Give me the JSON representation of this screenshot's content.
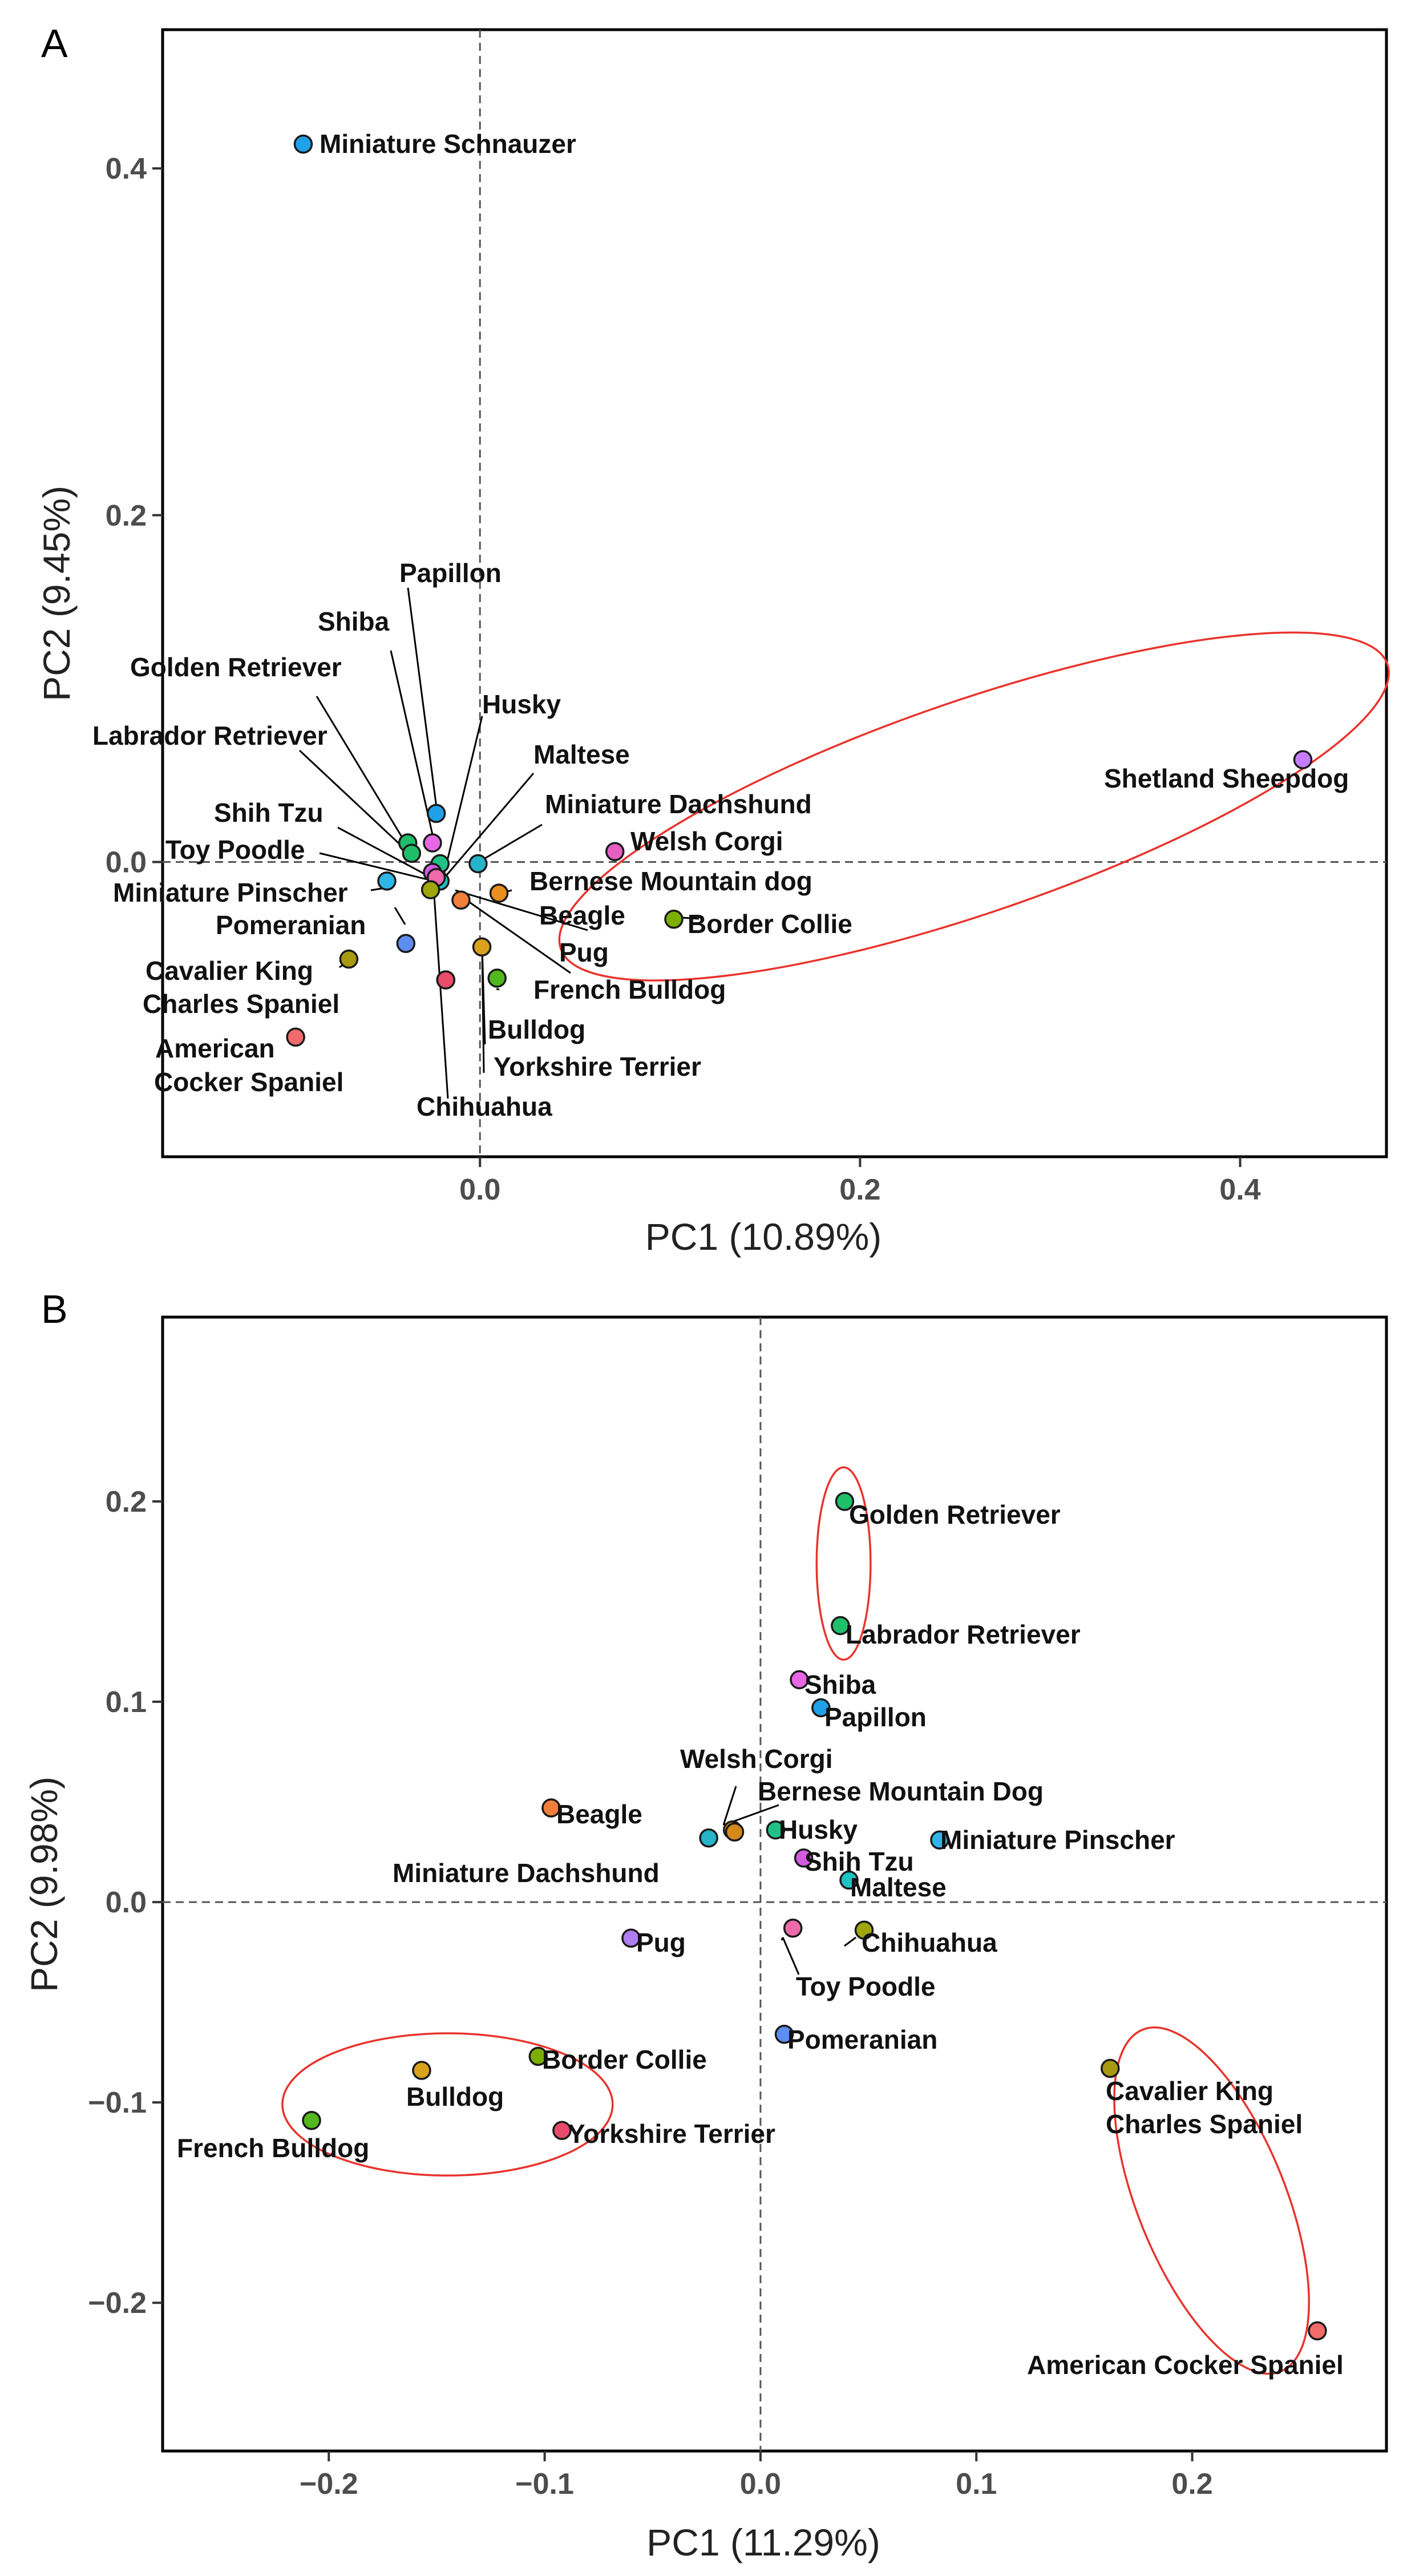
{
  "chart_data": [
    {
      "type": "scatter",
      "panel": "A",
      "xlabel": "PC1 (10.89%)",
      "ylabel": "PC2 (9.45%)",
      "xlim": [
        -0.167,
        0.477
      ],
      "ylim": [
        -0.17,
        0.48
      ],
      "xticks": [
        {
          "v": 0.0,
          "label": "0.0"
        },
        {
          "v": 0.2,
          "label": "0.2"
        },
        {
          "v": 0.4,
          "label": "0.4"
        }
      ],
      "yticks": [
        {
          "v": 0.0,
          "label": "0.0"
        },
        {
          "v": 0.2,
          "label": "0.2"
        },
        {
          "v": 0.4,
          "label": "0.4"
        }
      ],
      "reference_lines": {
        "x": 0,
        "y": 0
      },
      "points": [
        {
          "name": "Miniature Schnauzer",
          "x": -0.093,
          "y": 0.414,
          "color": "#1fa1e8"
        },
        {
          "name": "Shetland Sheepdog",
          "x": 0.433,
          "y": 0.059,
          "color": "#c77cff"
        },
        {
          "name": "Welsh Corgi",
          "x": 0.071,
          "y": 0.006,
          "color": "#e45fc1"
        },
        {
          "name": "Border Collie",
          "x": 0.102,
          "y": -0.033,
          "color": "#7cae00"
        },
        {
          "name": "Papillon",
          "x": -0.023,
          "y": 0.028,
          "color": "#1fa1e8"
        },
        {
          "name": "Shiba",
          "x": -0.025,
          "y": 0.011,
          "color": "#e668e6"
        },
        {
          "name": "Golden Retriever",
          "x": -0.038,
          "y": 0.011,
          "color": "#1fbf6a"
        },
        {
          "name": "Labrador Retriever",
          "x": -0.036,
          "y": 0.005,
          "color": "#1fbf6a"
        },
        {
          "name": "Husky",
          "x": -0.021,
          "y": -0.001,
          "color": "#21c089"
        },
        {
          "name": "Maltese",
          "x": -0.021,
          "y": -0.011,
          "color": "#1ec3c3"
        },
        {
          "name": "Miniature Dachshund",
          "x": -0.001,
          "y": -0.001,
          "color": "#27b3c8"
        },
        {
          "name": "Shih Tzu",
          "x": -0.025,
          "y": -0.006,
          "color": "#d45ae0"
        },
        {
          "name": "Toy Poodle",
          "x": -0.023,
          "y": -0.009,
          "color": "#ee6aab"
        },
        {
          "name": "Miniature Pinscher",
          "x": -0.049,
          "y": -0.011,
          "color": "#2eb7e6"
        },
        {
          "name": "Pomeranian",
          "x": -0.039,
          "y": -0.047,
          "color": "#5e8cf0"
        },
        {
          "name": "Cavalier King Charles Spaniel",
          "x": -0.069,
          "y": -0.056,
          "color": "#a89a10"
        },
        {
          "name": "American Cocker Spaniel",
          "x": -0.097,
          "y": -0.101,
          "color": "#f26b6b"
        },
        {
          "name": "Chihuahua",
          "x": -0.026,
          "y": -0.016,
          "color": "#9ea60b"
        },
        {
          "name": "Beagle",
          "x": -0.01,
          "y": -0.022,
          "color": "#f07f3c"
        },
        {
          "name": "Bernese Mountain dog",
          "x": 0.01,
          "y": -0.018,
          "color": "#e88f1f"
        },
        {
          "name": "Pug",
          "x": 0.001,
          "y": -0.049,
          "color": "#d9a21c"
        },
        {
          "name": "French Bulldog",
          "x": 0.009,
          "y": -0.067,
          "color": "#52b81f"
        },
        {
          "name": "Bulldog",
          "x": -0.018,
          "y": -0.068,
          "color": "#e94b6b"
        },
        {
          "name": "Yorkshire Terrier",
          "x": -0.018,
          "y": -0.068,
          "color": "#e94b6b"
        }
      ],
      "ellipses": [
        {
          "cx": 0.26,
          "cy": 0.032,
          "rx": 0.23,
          "ry": 0.061,
          "rotate_deg": -19,
          "color": "#e8332c"
        }
      ]
    },
    {
      "type": "scatter",
      "panel": "B",
      "xlabel": "PC1 (11.29%)",
      "ylabel": "PC2 (9.98%)",
      "xlim": [
        -0.277,
        0.29
      ],
      "ylim": [
        -0.274,
        0.292
      ],
      "xticks": [
        {
          "v": -0.2,
          "label": "−0.2"
        },
        {
          "v": -0.1,
          "label": "−0.1"
        },
        {
          "v": 0.0,
          "label": "0.0"
        },
        {
          "v": 0.1,
          "label": "0.1"
        },
        {
          "v": 0.2,
          "label": "0.2"
        }
      ],
      "yticks": [
        {
          "v": -0.2,
          "label": "−0.2"
        },
        {
          "v": -0.1,
          "label": "−0.1"
        },
        {
          "v": 0.0,
          "label": "0.0"
        },
        {
          "v": 0.1,
          "label": "0.1"
        },
        {
          "v": 0.2,
          "label": "0.2"
        }
      ],
      "reference_lines": {
        "x": 0,
        "y": 0
      },
      "points": [
        {
          "name": "Golden Retriever",
          "x": 0.039,
          "y": 0.2,
          "color": "#1fbf6a"
        },
        {
          "name": "Labrador Retriever",
          "x": 0.037,
          "y": 0.138,
          "color": "#1fbf6a"
        },
        {
          "name": "Shiba",
          "x": 0.018,
          "y": 0.111,
          "color": "#e668e6"
        },
        {
          "name": "Papillon",
          "x": 0.028,
          "y": 0.097,
          "color": "#1fa1e8"
        },
        {
          "name": "Welsh Corgi",
          "x": -0.013,
          "y": 0.036,
          "color": "#e88f1f"
        },
        {
          "name": "Bernese Mountain Dog",
          "x": -0.012,
          "y": 0.035,
          "color": "#d4891c"
        },
        {
          "name": "Beagle",
          "x": -0.097,
          "y": 0.047,
          "color": "#f07f3c"
        },
        {
          "name": "Husky",
          "x": 0.007,
          "y": 0.036,
          "color": "#21c089"
        },
        {
          "name": "Miniature Pinscher",
          "x": 0.083,
          "y": 0.031,
          "color": "#2eb7e6"
        },
        {
          "name": "Miniature Dachshund",
          "x": -0.024,
          "y": 0.032,
          "color": "#27b3c8"
        },
        {
          "name": "Shih Tzu",
          "x": 0.02,
          "y": 0.022,
          "color": "#d45ae0"
        },
        {
          "name": "Maltese",
          "x": 0.041,
          "y": 0.011,
          "color": "#1ec3c3"
        },
        {
          "name": "Pug",
          "x": -0.06,
          "y": -0.018,
          "color": "#b07ef0"
        },
        {
          "name": "Toy Poodle",
          "x": 0.015,
          "y": -0.013,
          "color": "#ee6aab"
        },
        {
          "name": "Chihuahua",
          "x": 0.048,
          "y": -0.014,
          "color": "#9ea60b"
        },
        {
          "name": "Pomeranian",
          "x": 0.011,
          "y": -0.066,
          "color": "#5e8cf0"
        },
        {
          "name": "Border Collie",
          "x": -0.103,
          "y": -0.077,
          "color": "#7cae00"
        },
        {
          "name": "Bulldog",
          "x": -0.157,
          "y": -0.084,
          "color": "#d9a21c"
        },
        {
          "name": "Yorkshire Terrier",
          "x": -0.092,
          "y": -0.114,
          "color": "#e94b6b"
        },
        {
          "name": "French Bulldog",
          "x": -0.208,
          "y": -0.109,
          "color": "#52b81f"
        },
        {
          "name": "Cavalier King Charles Spaniel",
          "x": 0.162,
          "y": -0.083,
          "color": "#a89a10"
        },
        {
          "name": "American Cocker Spaniel",
          "x": 0.258,
          "y": -0.214,
          "color": "#f26b6b"
        }
      ],
      "ellipses": [
        {
          "cx": 0.0385,
          "cy": 0.169,
          "rx": 0.0125,
          "ry": 0.048,
          "rotate_deg": 0,
          "color": "#e8332c"
        },
        {
          "cx": -0.145,
          "cy": -0.101,
          "rx": 0.0765,
          "ry": 0.0355,
          "rotate_deg": 0,
          "color": "#e8332c"
        },
        {
          "cx": 0.209,
          "cy": -0.149,
          "rx": 0.0343,
          "ry": 0.092,
          "rotate_deg": -22,
          "color": "#e8332c"
        }
      ]
    }
  ],
  "panel_labels": {
    "a": "A",
    "b": "B"
  },
  "labels_a": {
    "miniature_schnauzer": "Miniature Schnauzer",
    "shetland_sheepdog": "Shetland Sheepdog",
    "papillon": "Papillon",
    "shiba": "Shiba",
    "golden_retriever": "Golden Retriever",
    "labrador_retriever": "Labrador Retriever",
    "husky": "Husky",
    "maltese": "Maltese",
    "miniature_dachshund": "Miniature Dachshund",
    "welsh_corgi": "Welsh Corgi",
    "shih_tzu": "Shih Tzu",
    "toy_poodle": "Toy Poodle",
    "bernese": "Bernese Mountain dog",
    "miniature_pinscher": "Miniature Pinscher",
    "beagle": "Beagle",
    "border_collie": "Border Collie",
    "pomeranian": "Pomeranian",
    "pug": "Pug",
    "cavalier_1": "Cavalier King",
    "cavalier_2": "Charles Spaniel",
    "french_bulldog": "French Bulldog",
    "bulldog": "Bulldog",
    "american_1": "American",
    "american_2": "Cocker Spaniel",
    "yorkshire": "Yorkshire Terrier",
    "chihuahua": "Chihuahua"
  },
  "labels_b": {
    "golden_retriever": "Golden Retriever",
    "labrador_retriever": "Labrador Retriever",
    "shiba": "Shiba",
    "papillon": "Papillon",
    "welsh_corgi": "Welsh Corgi",
    "bernese": "Bernese Mountain Dog",
    "beagle": "Beagle",
    "husky": "Husky",
    "miniature_pinscher": "Miniature Pinscher",
    "miniature_dachshund": "Miniature Dachshund",
    "shih_tzu": "Shih Tzu",
    "maltese": "Maltese",
    "pug": "Pug",
    "chihuahua": "Chihuahua",
    "toy_poodle": "Toy Poodle",
    "pomeranian": "Pomeranian",
    "border_collie": "Border Collie",
    "bulldog": "Bulldog",
    "yorkshire": "Yorkshire Terrier",
    "french_bulldog": "French Bulldog",
    "cavalier_1": "Cavalier King",
    "cavalier_2": "Charles Spaniel",
    "american": "American Cocker Spaniel"
  }
}
